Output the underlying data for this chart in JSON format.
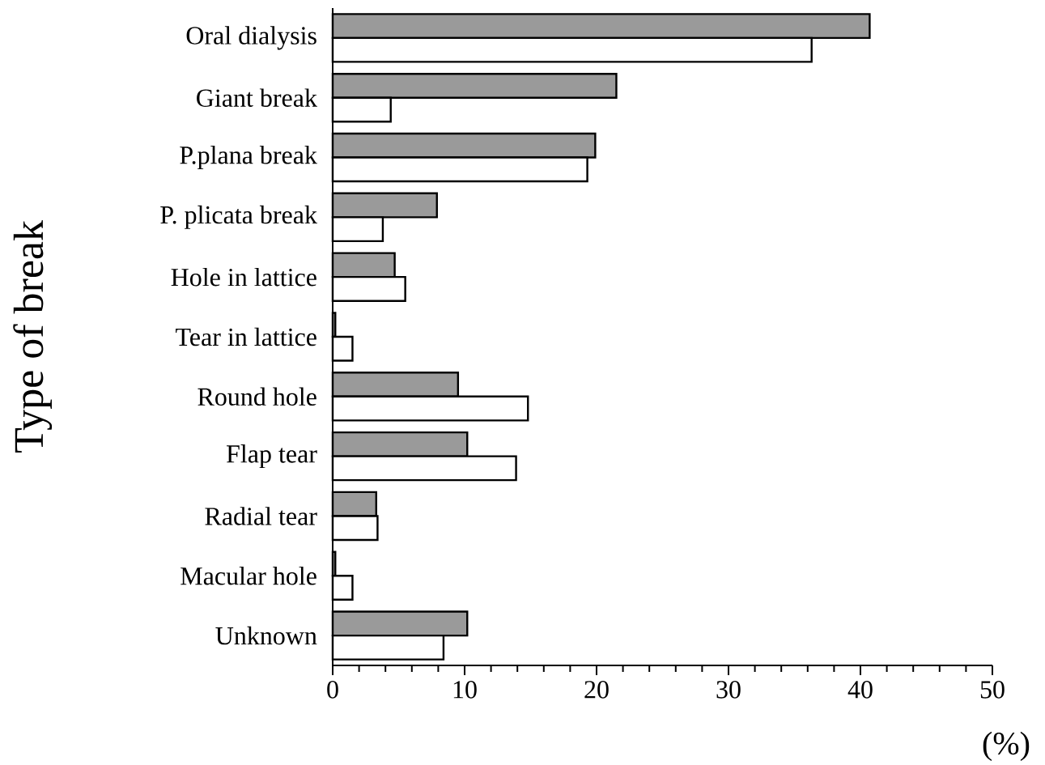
{
  "chart_data": {
    "type": "bar",
    "orientation": "horizontal",
    "ylabel": "Type of break",
    "categories": [
      "Oral dialysis",
      "Giant break",
      "P.plana break",
      "P. plicata break",
      "Hole in lattice",
      "Tear in lattice",
      "Round hole",
      "Flap tear",
      "Radial tear",
      "Macular hole",
      "Unknown"
    ],
    "series": [
      {
        "color": "#9a9a9a",
        "values": [
          40.7,
          21.5,
          19.9,
          7.9,
          4.7,
          0.2,
          9.5,
          10.2,
          3.3,
          0.2,
          10.2
        ]
      },
      {
        "color": "#ffffff",
        "values": [
          36.3,
          4.4,
          19.3,
          3.8,
          5.5,
          1.5,
          14.8,
          13.9,
          3.4,
          1.5,
          8.4
        ]
      }
    ],
    "xlim": [
      0,
      50
    ],
    "xticks": [
      0,
      10,
      20,
      30,
      40,
      50
    ],
    "annotations": [
      "(%)"
    ]
  }
}
